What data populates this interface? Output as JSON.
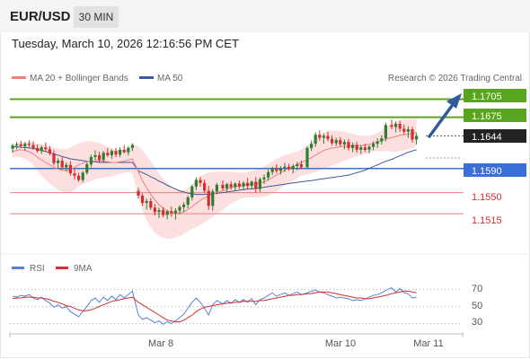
{
  "header": {
    "pair": "EUR/USD",
    "timeframe": "30 MIN",
    "datetime": "Tuesday, March 10, 2026 12:16:56 PM CET"
  },
  "legend": {
    "ma20_label": "MA 20 + Bollinger Bands",
    "ma50_label": "MA 50",
    "credit": "Research © 2026 Trading Central",
    "rsi_label": "RSI",
    "ma9_label": "9MA"
  },
  "colors": {
    "resistance": "#5aa51e",
    "support": "#f08080",
    "pivot": "#3a6fd8",
    "last": "#222222",
    "bull": "#2e7d32",
    "bear": "#d32f2f",
    "ma20": "#f08080",
    "ma50": "#3d5a99",
    "bands": "#fbd4d4",
    "rsi": "#5b7fd6",
    "ma9": "#d32f2f",
    "arrow": "#2f5b9b"
  },
  "levels": {
    "r2": "1.1705",
    "r1": "1.1675",
    "last": "1.1644",
    "pivot": "1.1590",
    "s1": "1.1550",
    "s2": "1.1515"
  },
  "rsi_axis": {
    "t70": "70",
    "t50": "50",
    "t30": "30"
  },
  "x_axis": {
    "d1": "Mar 8",
    "d2": "Mar 10",
    "d3": "Mar 11"
  },
  "chart_data": {
    "type": "candlestick",
    "price_range": [
      1.1475,
      1.1725
    ],
    "rsi_range": [
      20,
      80
    ],
    "candles": [
      [
        1.1623,
        1.1631,
        1.1616,
        1.1628
      ],
      [
        1.1628,
        1.1634,
        1.1622,
        1.163
      ],
      [
        1.163,
        1.1636,
        1.1624,
        1.1627
      ],
      [
        1.1627,
        1.1634,
        1.162,
        1.1631
      ],
      [
        1.1631,
        1.1637,
        1.1625,
        1.1629
      ],
      [
        1.1629,
        1.1635,
        1.1621,
        1.1624
      ],
      [
        1.1624,
        1.163,
        1.1616,
        1.1619
      ],
      [
        1.1619,
        1.1628,
        1.1614,
        1.1625
      ],
      [
        1.1625,
        1.1633,
        1.1618,
        1.1622
      ],
      [
        1.1622,
        1.1627,
        1.1612,
        1.1615
      ],
      [
        1.1615,
        1.162,
        1.1595,
        1.1599
      ],
      [
        1.1599,
        1.1607,
        1.159,
        1.1603
      ],
      [
        1.1603,
        1.1609,
        1.1588,
        1.1592
      ],
      [
        1.1592,
        1.16,
        1.1585,
        1.1596
      ],
      [
        1.1596,
        1.1602,
        1.1578,
        1.1582
      ],
      [
        1.1582,
        1.1589,
        1.1572,
        1.1578
      ],
      [
        1.1578,
        1.1583,
        1.1568,
        1.1571
      ],
      [
        1.1571,
        1.1586,
        1.1567,
        1.1583
      ],
      [
        1.1583,
        1.16,
        1.158,
        1.1597
      ],
      [
        1.1597,
        1.1613,
        1.1592,
        1.1609
      ],
      [
        1.1609,
        1.162,
        1.1604,
        1.1612
      ],
      [
        1.1612,
        1.1618,
        1.16,
        1.1604
      ],
      [
        1.1604,
        1.1619,
        1.16,
        1.1616
      ],
      [
        1.1616,
        1.1624,
        1.1609,
        1.1612
      ],
      [
        1.1612,
        1.1622,
        1.1606,
        1.1619
      ],
      [
        1.1619,
        1.1624,
        1.1609,
        1.1613
      ],
      [
        1.1613,
        1.1625,
        1.1609,
        1.1621
      ],
      [
        1.1621,
        1.1629,
        1.1615,
        1.1617
      ],
      [
        1.1617,
        1.1627,
        1.1612,
        1.1624
      ],
      [
        1.1624,
        1.1632,
        1.1619,
        1.1629
      ],
      [
        1.1553,
        1.1558,
        1.154,
        1.1545
      ],
      [
        1.1545,
        1.1549,
        1.1528,
        1.1533
      ],
      [
        1.1533,
        1.154,
        1.1522,
        1.1536
      ],
      [
        1.1536,
        1.1541,
        1.1521,
        1.1525
      ],
      [
        1.1525,
        1.1531,
        1.1512,
        1.1518
      ],
      [
        1.1518,
        1.1525,
        1.1508,
        1.1521
      ],
      [
        1.1521,
        1.1526,
        1.1509,
        1.1513
      ],
      [
        1.1513,
        1.1521,
        1.1506,
        1.1519
      ],
      [
        1.1519,
        1.1527,
        1.151,
        1.1516
      ],
      [
        1.1516,
        1.1524,
        1.1505,
        1.152
      ],
      [
        1.152,
        1.1529,
        1.1514,
        1.1526
      ],
      [
        1.1526,
        1.1534,
        1.1518,
        1.153
      ],
      [
        1.153,
        1.1545,
        1.1524,
        1.1542
      ],
      [
        1.1542,
        1.1563,
        1.1537,
        1.156
      ],
      [
        1.156,
        1.1575,
        1.1554,
        1.1571
      ],
      [
        1.1571,
        1.1576,
        1.156,
        1.1566
      ],
      [
        1.1566,
        1.1571,
        1.1549,
        1.1553
      ],
      [
        1.1553,
        1.1561,
        1.1521,
        1.1528
      ],
      [
        1.1528,
        1.1556,
        1.152,
        1.1552
      ],
      [
        1.1552,
        1.1566,
        1.1547,
        1.1563
      ],
      [
        1.1563,
        1.157,
        1.1553,
        1.1557
      ],
      [
        1.1557,
        1.1566,
        1.1551,
        1.1564
      ],
      [
        1.1564,
        1.1569,
        1.1555,
        1.1559
      ],
      [
        1.1559,
        1.1567,
        1.1553,
        1.1565
      ],
      [
        1.1565,
        1.157,
        1.1556,
        1.156
      ],
      [
        1.156,
        1.1569,
        1.1554,
        1.1566
      ],
      [
        1.1566,
        1.1574,
        1.1556,
        1.1561
      ],
      [
        1.1561,
        1.157,
        1.1556,
        1.1568
      ],
      [
        1.1568,
        1.1576,
        1.155,
        1.1556
      ],
      [
        1.1556,
        1.1575,
        1.1551,
        1.1572
      ],
      [
        1.1572,
        1.158,
        1.1564,
        1.1575
      ],
      [
        1.1575,
        1.1588,
        1.157,
        1.1584
      ],
      [
        1.1584,
        1.1593,
        1.1579,
        1.159
      ],
      [
        1.159,
        1.1597,
        1.1582,
        1.1586
      ],
      [
        1.1586,
        1.1594,
        1.158,
        1.1591
      ],
      [
        1.1591,
        1.1599,
        1.1584,
        1.1593
      ],
      [
        1.1593,
        1.1598,
        1.1586,
        1.1589
      ],
      [
        1.1589,
        1.1597,
        1.1582,
        1.1594
      ],
      [
        1.1594,
        1.1601,
        1.1587,
        1.1597
      ],
      [
        1.1597,
        1.1603,
        1.1589,
        1.1592
      ],
      [
        1.1592,
        1.1627,
        1.1589,
        1.1624
      ],
      [
        1.1624,
        1.1636,
        1.1619,
        1.1631
      ],
      [
        1.1631,
        1.165,
        1.1626,
        1.1646
      ],
      [
        1.1646,
        1.1653,
        1.1636,
        1.1641
      ],
      [
        1.1641,
        1.1648,
        1.1631,
        1.1644
      ],
      [
        1.1644,
        1.1651,
        1.1635,
        1.1639
      ],
      [
        1.1639,
        1.1645,
        1.1628,
        1.1632
      ],
      [
        1.1632,
        1.1641,
        1.1627,
        1.1637
      ],
      [
        1.1637,
        1.1642,
        1.1626,
        1.163
      ],
      [
        1.163,
        1.1638,
        1.1622,
        1.1634
      ],
      [
        1.1634,
        1.1639,
        1.162,
        1.1624
      ],
      [
        1.1624,
        1.1633,
        1.1617,
        1.1629
      ],
      [
        1.1629,
        1.1634,
        1.1616,
        1.1621
      ],
      [
        1.1621,
        1.1629,
        1.1614,
        1.1625
      ],
      [
        1.1625,
        1.1631,
        1.1617,
        1.1621
      ],
      [
        1.1621,
        1.1629,
        1.1615,
        1.1626
      ],
      [
        1.1626,
        1.1635,
        1.162,
        1.1631
      ],
      [
        1.1631,
        1.164,
        1.1624,
        1.1635
      ],
      [
        1.1635,
        1.1645,
        1.163,
        1.164
      ],
      [
        1.164,
        1.1666,
        1.1635,
        1.1662
      ],
      [
        1.1662,
        1.1671,
        1.1655,
        1.1659
      ],
      [
        1.1659,
        1.1668,
        1.165,
        1.1664
      ],
      [
        1.1664,
        1.1669,
        1.1651,
        1.1656
      ],
      [
        1.1656,
        1.1663,
        1.1646,
        1.1651
      ],
      [
        1.1651,
        1.166,
        1.1641,
        1.1655
      ],
      [
        1.1655,
        1.1659,
        1.1633,
        1.1638
      ],
      [
        1.1638,
        1.1649,
        1.163,
        1.1644
      ]
    ],
    "ma20": [
      1.1618,
      1.162,
      1.1621,
      1.162,
      1.1618,
      1.1614,
      1.1609,
      1.1604,
      1.16,
      1.1596,
      1.1592,
      1.1589,
      1.1587,
      1.1586,
      1.1588,
      1.1592,
      1.1596,
      1.1599,
      1.1601,
      1.1602,
      1.1603,
      1.1603,
      1.1602,
      1.1601,
      1.16,
      1.16,
      1.1601,
      1.1602,
      1.1604,
      1.1606,
      1.1585,
      1.157,
      1.1558,
      1.1547,
      1.1538,
      1.153,
      1.1524,
      1.152,
      1.1517,
      1.1516,
      1.1516,
      1.1518,
      1.1522,
      1.1527,
      1.1532,
      1.1537,
      1.1541,
      1.1544,
      1.1547,
      1.155,
      1.1553,
      1.1556,
      1.1558,
      1.156,
      1.1561,
      1.1562,
      1.1563,
      1.1564,
      1.1565,
      1.1566,
      1.1568,
      1.1571,
      1.1575,
      1.1579,
      1.1583,
      1.1587,
      1.159,
      1.1593,
      1.1596,
      1.16,
      1.1604,
      1.1608,
      1.1612,
      1.1616,
      1.162,
      1.1622,
      1.1624,
      1.1625,
      1.1626,
      1.1627,
      1.1627,
      1.1628,
      1.1628,
      1.1628,
      1.1629,
      1.163,
      1.1632,
      1.1634,
      1.1636,
      1.1639,
      1.1641,
      1.1643,
      1.1645,
      1.1646,
      1.1647,
      1.1648,
      1.165
    ],
    "band_width": [
      0.001,
      0.0011,
      0.0012,
      0.0014,
      0.0016,
      0.0019,
      0.0022,
      0.0026,
      0.0029,
      0.0031,
      0.0033,
      0.0034,
      0.0035,
      0.0036,
      0.0037,
      0.0037,
      0.0036,
      0.0035,
      0.0034,
      0.0033,
      0.0031,
      0.0029,
      0.0027,
      0.0025,
      0.0023,
      0.0021,
      0.002,
      0.0019,
      0.002,
      0.0024,
      0.0042,
      0.005,
      0.0054,
      0.0055,
      0.0054,
      0.0052,
      0.0049,
      0.0046,
      0.0043,
      0.004,
      0.0038,
      0.0036,
      0.0036,
      0.0037,
      0.0039,
      0.004,
      0.004,
      0.0039,
      0.0037,
      0.0035,
      0.0032,
      0.0029,
      0.0026,
      0.0024,
      0.0022,
      0.0021,
      0.0021,
      0.0022,
      0.0023,
      0.0024,
      0.0025,
      0.0026,
      0.0027,
      0.0027,
      0.0026,
      0.0025,
      0.0024,
      0.0023,
      0.0022,
      0.0022,
      0.0024,
      0.0026,
      0.0028,
      0.0029,
      0.003,
      0.003,
      0.0029,
      0.0028,
      0.0026,
      0.0024,
      0.0022,
      0.002,
      0.0018,
      0.0016,
      0.0015,
      0.0014,
      0.0014,
      0.0015,
      0.0017,
      0.002,
      0.0023,
      0.0025,
      0.0026,
      0.0026,
      0.0025,
      0.0024,
      0.0022
    ],
    "ma50": [
      1.1626,
      1.1626,
      1.1625,
      1.1625,
      1.1624,
      1.1623,
      1.1622,
      1.162,
      1.1618,
      1.1616,
      1.1614,
      1.1612,
      1.161,
      1.1608,
      1.1606,
      1.1605,
      1.1604,
      1.1603,
      1.1602,
      1.1601,
      1.1601,
      1.16,
      1.16,
      1.16,
      1.16,
      1.16,
      1.16,
      1.16,
      1.16,
      1.16,
      1.1586,
      1.1583,
      1.158,
      1.1576,
      1.1573,
      1.1569,
      1.1566,
      1.1562,
      1.1559,
      1.1556,
      1.1553,
      1.1551,
      1.1549,
      1.1548,
      1.1547,
      1.1547,
      1.1547,
      1.1547,
      1.1548,
      1.1549,
      1.155,
      1.1551,
      1.1552,
      1.1553,
      1.1554,
      1.1555,
      1.1556,
      1.1556,
      1.1557,
      1.1558,
      1.1559,
      1.156,
      1.1561,
      1.1562,
      1.1563,
      1.1564,
      1.1565,
      1.1566,
      1.1567,
      1.1568,
      1.1569,
      1.157,
      1.1571,
      1.1572,
      1.1573,
      1.1574,
      1.1575,
      1.1576,
      1.1577,
      1.1578,
      1.1579,
      1.1581,
      1.1583,
      1.1585,
      1.1587,
      1.159,
      1.1593,
      1.1596,
      1.1599,
      1.1602,
      1.1605,
      1.1608,
      1.1611,
      1.1614,
      1.1617,
      1.1619,
      1.1621
    ],
    "rsi": [
      62,
      61,
      63,
      62,
      64,
      60,
      58,
      61,
      57,
      54,
      49,
      52,
      48,
      50,
      44,
      41,
      38,
      44,
      50,
      57,
      60,
      55,
      61,
      57,
      62,
      58,
      64,
      60,
      64,
      68,
      40,
      35,
      37,
      34,
      31,
      33,
      29,
      32,
      30,
      33,
      37,
      41,
      48,
      55,
      60,
      55,
      48,
      40,
      52,
      57,
      53,
      57,
      54,
      58,
      55,
      58,
      55,
      59,
      52,
      58,
      60,
      63,
      66,
      62,
      64,
      66,
      63,
      65,
      67,
      64,
      66,
      68,
      69,
      67,
      66,
      64,
      62,
      60,
      61,
      60,
      59,
      57,
      58,
      57,
      59,
      61,
      63,
      64,
      66,
      69,
      72,
      67,
      71,
      66,
      65,
      60,
      61
    ],
    "ma9": [
      59,
      60,
      60,
      61,
      61,
      61,
      60,
      60,
      59,
      58,
      56,
      55,
      53,
      51,
      50,
      48,
      46,
      45,
      45,
      46,
      48,
      50,
      52,
      54,
      56,
      57,
      58,
      59,
      60,
      61,
      55,
      52,
      49,
      46,
      43,
      40,
      37,
      34,
      33,
      32,
      32,
      34,
      37,
      40,
      44,
      47,
      49,
      50,
      51,
      52,
      53,
      54,
      54,
      55,
      55,
      56,
      56,
      56,
      56,
      57,
      57,
      58,
      59,
      60,
      61,
      62,
      63,
      63,
      64,
      64,
      65,
      65,
      66,
      67,
      67,
      67,
      66,
      65,
      64,
      63,
      62,
      61,
      60,
      60,
      59,
      59,
      60,
      61,
      62,
      63,
      65,
      66,
      67,
      68,
      68,
      67,
      66
    ]
  }
}
